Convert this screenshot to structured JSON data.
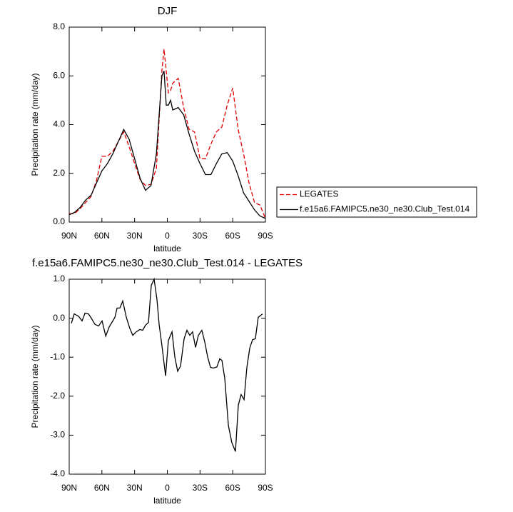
{
  "chart_data": [
    {
      "type": "line",
      "title": "DJF",
      "xlabel": "latitude",
      "ylabel": "Precipitation rate (mm/day)",
      "xlim": [
        90,
        -90
      ],
      "xticks": [
        {
          "value": 90,
          "label": "90N"
        },
        {
          "value": 60,
          "label": "60N"
        },
        {
          "value": 30,
          "label": "30N"
        },
        0,
        {
          "value": -30,
          "label": "30S"
        },
        {
          "value": -60,
          "label": "60S"
        },
        {
          "value": -90,
          "label": "90S"
        }
      ],
      "ylim": [
        0,
        8
      ],
      "yticks": [
        {
          "value": 0,
          "label": "0.0"
        },
        {
          "value": 2,
          "label": "2.0"
        },
        {
          "value": 4,
          "label": "4.0"
        },
        {
          "value": 6,
          "label": "6.0"
        },
        {
          "value": 8,
          "label": "8.0"
        }
      ],
      "legend": "right",
      "x": [
        90,
        85,
        80,
        75,
        70,
        65,
        60,
        55,
        50,
        45,
        40,
        35,
        30,
        25,
        20,
        15,
        10,
        5,
        3,
        1,
        -1,
        -3,
        -5,
        -10,
        -15,
        -20,
        -25,
        -30,
        -35,
        -40,
        -45,
        -50,
        -55,
        -60,
        -65,
        -70,
        -75,
        -80,
        -85,
        -90
      ],
      "series": [
        {
          "name": "LEGATES",
          "color": "#e00000",
          "line_style": "dashed",
          "values": [
            0.35,
            0.35,
            0.55,
            0.8,
            1.05,
            1.7,
            2.7,
            2.7,
            2.9,
            3.3,
            3.7,
            3.1,
            2.4,
            1.75,
            1.5,
            1.55,
            2.2,
            6.2,
            7.1,
            6.2,
            5.3,
            5.4,
            5.7,
            5.9,
            4.7,
            3.8,
            3.7,
            2.6,
            2.6,
            3.2,
            3.7,
            3.9,
            4.8,
            5.5,
            3.8,
            2.8,
            1.6,
            0.8,
            0.7,
            0.15
          ]
        },
        {
          "name": "f.e15a6.FAMIPC5.ne30_ne30.Club_Test.014",
          "color": "#000000",
          "line_style": "solid",
          "values": [
            0.3,
            0.4,
            0.6,
            0.9,
            1.1,
            1.6,
            2.1,
            2.4,
            2.8,
            3.3,
            3.8,
            3.4,
            2.6,
            1.8,
            1.3,
            1.5,
            2.8,
            6.0,
            6.2,
            4.8,
            4.8,
            5.0,
            4.6,
            4.7,
            4.4,
            3.6,
            2.9,
            2.4,
            1.95,
            1.95,
            2.4,
            2.8,
            2.85,
            2.5,
            1.9,
            1.2,
            0.85,
            0.5,
            0.25,
            0.15
          ]
        }
      ]
    },
    {
      "type": "line",
      "title": "f.e15a6.FAMIPC5.ne30_ne30.Club_Test.014 - LEGATES",
      "xlabel": "latitude",
      "ylabel": "Precipitation rate (mm/day)",
      "xlim": [
        90,
        -90
      ],
      "xticks": [
        {
          "value": 90,
          "label": "90N"
        },
        {
          "value": 60,
          "label": "60N"
        },
        {
          "value": 30,
          "label": "30N"
        },
        0,
        {
          "value": -30,
          "label": "30S"
        },
        {
          "value": -60,
          "label": "60S"
        },
        {
          "value": -90,
          "label": "90S"
        }
      ],
      "ylim": [
        -4,
        1
      ],
      "yticks": [
        {
          "value": 1,
          "label": "1.0"
        },
        {
          "value": 0,
          "label": "0.0"
        },
        {
          "value": -1,
          "label": "-1.0"
        },
        {
          "value": -2,
          "label": "-2.0"
        },
        {
          "value": -3,
          "label": "-3.0"
        },
        {
          "value": -4,
          "label": "-4.0"
        }
      ],
      "x": [
        88.0,
        85.4,
        81.4,
        78.2,
        75.5,
        72.3,
        69.7,
        66.4,
        63.1,
        59.8,
        56.5,
        53.3,
        50.0,
        48.1,
        46.1,
        43.5,
        40.9,
        37.6,
        34.4,
        31.7,
        28.5,
        25.2,
        22.6,
        20.0,
        17.3,
        14.7,
        12.1,
        9.5,
        7.5,
        4.9,
        1.6,
        -1.0,
        -4.3,
        -6.9,
        -9.5,
        -12.1,
        -15.4,
        -18.0,
        -20.6,
        -23.2,
        -25.9,
        -28.5,
        -31.7,
        -34.4,
        -37.0,
        -39.6,
        -42.2,
        -45.5,
        -48.1,
        -50.1,
        -52.7,
        -56.0,
        -59.2,
        -62.5,
        -65.1,
        -67.7,
        -70.4,
        -73.0,
        -75.6,
        -78.2,
        -80.8,
        -83.4,
        -87.3
      ],
      "series": [
        {
          "name": null,
          "color": "#000000",
          "line_style": "solid",
          "values": [
            -0.13,
            0.11,
            0.05,
            -0.07,
            0.13,
            0.11,
            0,
            -0.16,
            -0.2,
            -0.07,
            -0.46,
            -0.22,
            -0.07,
            0.02,
            0.26,
            0.26,
            0.44,
            0.02,
            -0.26,
            -0.44,
            -0.35,
            -0.29,
            -0.31,
            -0.18,
            -0.11,
            0.84,
            1.0,
            0.48,
            -0.16,
            -0.71,
            -1.48,
            -0.57,
            -0.35,
            -0.99,
            -1.36,
            -1.23,
            -0.53,
            -0.31,
            -0.44,
            -0.35,
            -0.75,
            -0.44,
            -0.31,
            -0.62,
            -0.99,
            -1.26,
            -1.28,
            -1.25,
            -1.04,
            -1.08,
            -1.54,
            -2.75,
            -3.19,
            -3.42,
            -2.23,
            -1.96,
            -2.09,
            -1.26,
            -0.77,
            -0.55,
            -0.53,
            0.02,
            0.11
          ]
        }
      ]
    }
  ]
}
